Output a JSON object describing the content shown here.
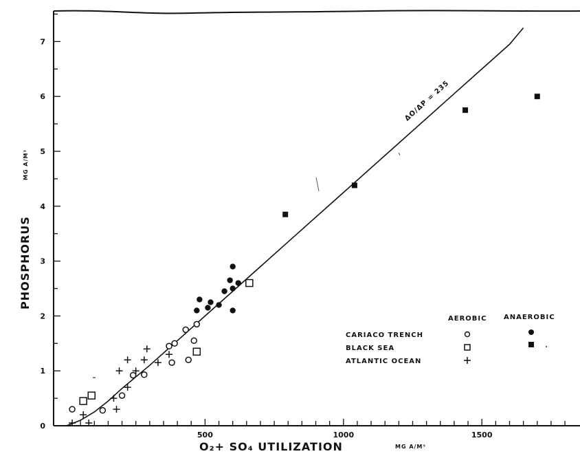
{
  "chart_data": {
    "type": "scatter",
    "title": "",
    "xlabel": "O₂+ SO₄  UTILIZATION",
    "xunit": "MG A/M³",
    "ylabel": "PHOSPHORUS",
    "yunit": "MG A/M³",
    "xlim": [
      0,
      1800
    ],
    "ylim": [
      0,
      7.5
    ],
    "x_tick_labels": [
      "500",
      "1000",
      "1500"
    ],
    "x_ticks": [
      500,
      1000,
      1500
    ],
    "y_tick_labels": [
      "0",
      "1",
      "2",
      "3",
      "4",
      "5",
      "6",
      "7"
    ],
    "y_ticks": [
      0,
      1,
      2,
      3,
      4,
      5,
      6,
      7
    ],
    "grid": false,
    "legend_position": "lower-right",
    "legend_headers": {
      "aerobic": "AEROBIC",
      "anaerobic": "ANAEROBIC"
    },
    "legend_rows": [
      {
        "label": "CARIACO TRENCH",
        "aerobic_marker": "open-circle",
        "anaerobic_marker": "filled-circle"
      },
      {
        "label": "BLACK SEA",
        "aerobic_marker": "open-square",
        "anaerobic_marker": "filled-square"
      },
      {
        "label": "ATLANTIC OCEAN",
        "aerobic_marker": "plus",
        "anaerobic_marker": ""
      }
    ],
    "annotation": "ΔO/ΔP = 235",
    "fit_line": {
      "label": "ΔO/ΔP = 235",
      "x": [
        0,
        50,
        100,
        150,
        200,
        300,
        400,
        500,
        600,
        800,
        1000,
        1200,
        1400,
        1600,
        1650
      ],
      "y": [
        0,
        0.1,
        0.25,
        0.45,
        0.68,
        1.1,
        1.55,
        2.0,
        2.45,
        3.35,
        4.25,
        5.15,
        6.05,
        6.95,
        7.25
      ]
    },
    "series": [
      {
        "name": "CARIACO TRENCH aerobic",
        "marker": "open-circle",
        "points": [
          [
            20,
            0.3
          ],
          [
            130,
            0.28
          ],
          [
            200,
            0.55
          ],
          [
            240,
            0.92
          ],
          [
            280,
            0.93
          ],
          [
            370,
            1.45
          ],
          [
            380,
            1.15
          ],
          [
            390,
            1.5
          ],
          [
            430,
            1.75
          ],
          [
            440,
            1.2
          ],
          [
            460,
            1.55
          ],
          [
            470,
            1.85
          ]
        ]
      },
      {
        "name": "CARIACO TRENCH anaerobic",
        "marker": "filled-circle",
        "points": [
          [
            470,
            2.1
          ],
          [
            480,
            2.3
          ],
          [
            510,
            2.15
          ],
          [
            520,
            2.25
          ],
          [
            550,
            2.2
          ],
          [
            570,
            2.45
          ],
          [
            590,
            2.65
          ],
          [
            600,
            2.9
          ],
          [
            600,
            2.5
          ],
          [
            600,
            2.1
          ],
          [
            620,
            2.6
          ]
        ]
      },
      {
        "name": "BLACK SEA aerobic",
        "marker": "open-square",
        "points": [
          [
            60,
            0.45
          ],
          [
            90,
            0.55
          ],
          [
            470,
            1.35
          ],
          [
            660,
            2.6
          ]
        ]
      },
      {
        "name": "BLACK SEA anaerobic",
        "marker": "filled-square",
        "points": [
          [
            790,
            3.85
          ],
          [
            1040,
            4.38
          ],
          [
            1440,
            5.75
          ],
          [
            1700,
            6.0
          ]
        ]
      },
      {
        "name": "ATLANTIC OCEAN",
        "marker": "plus",
        "points": [
          [
            20,
            0.05
          ],
          [
            60,
            0.2
          ],
          [
            80,
            0.05
          ],
          [
            170,
            0.5
          ],
          [
            180,
            0.3
          ],
          [
            190,
            1.0
          ],
          [
            220,
            1.2
          ],
          [
            220,
            0.7
          ],
          [
            250,
            1.0
          ],
          [
            280,
            1.2
          ],
          [
            290,
            1.4
          ],
          [
            330,
            1.15
          ],
          [
            370,
            1.3
          ]
        ]
      }
    ]
  }
}
